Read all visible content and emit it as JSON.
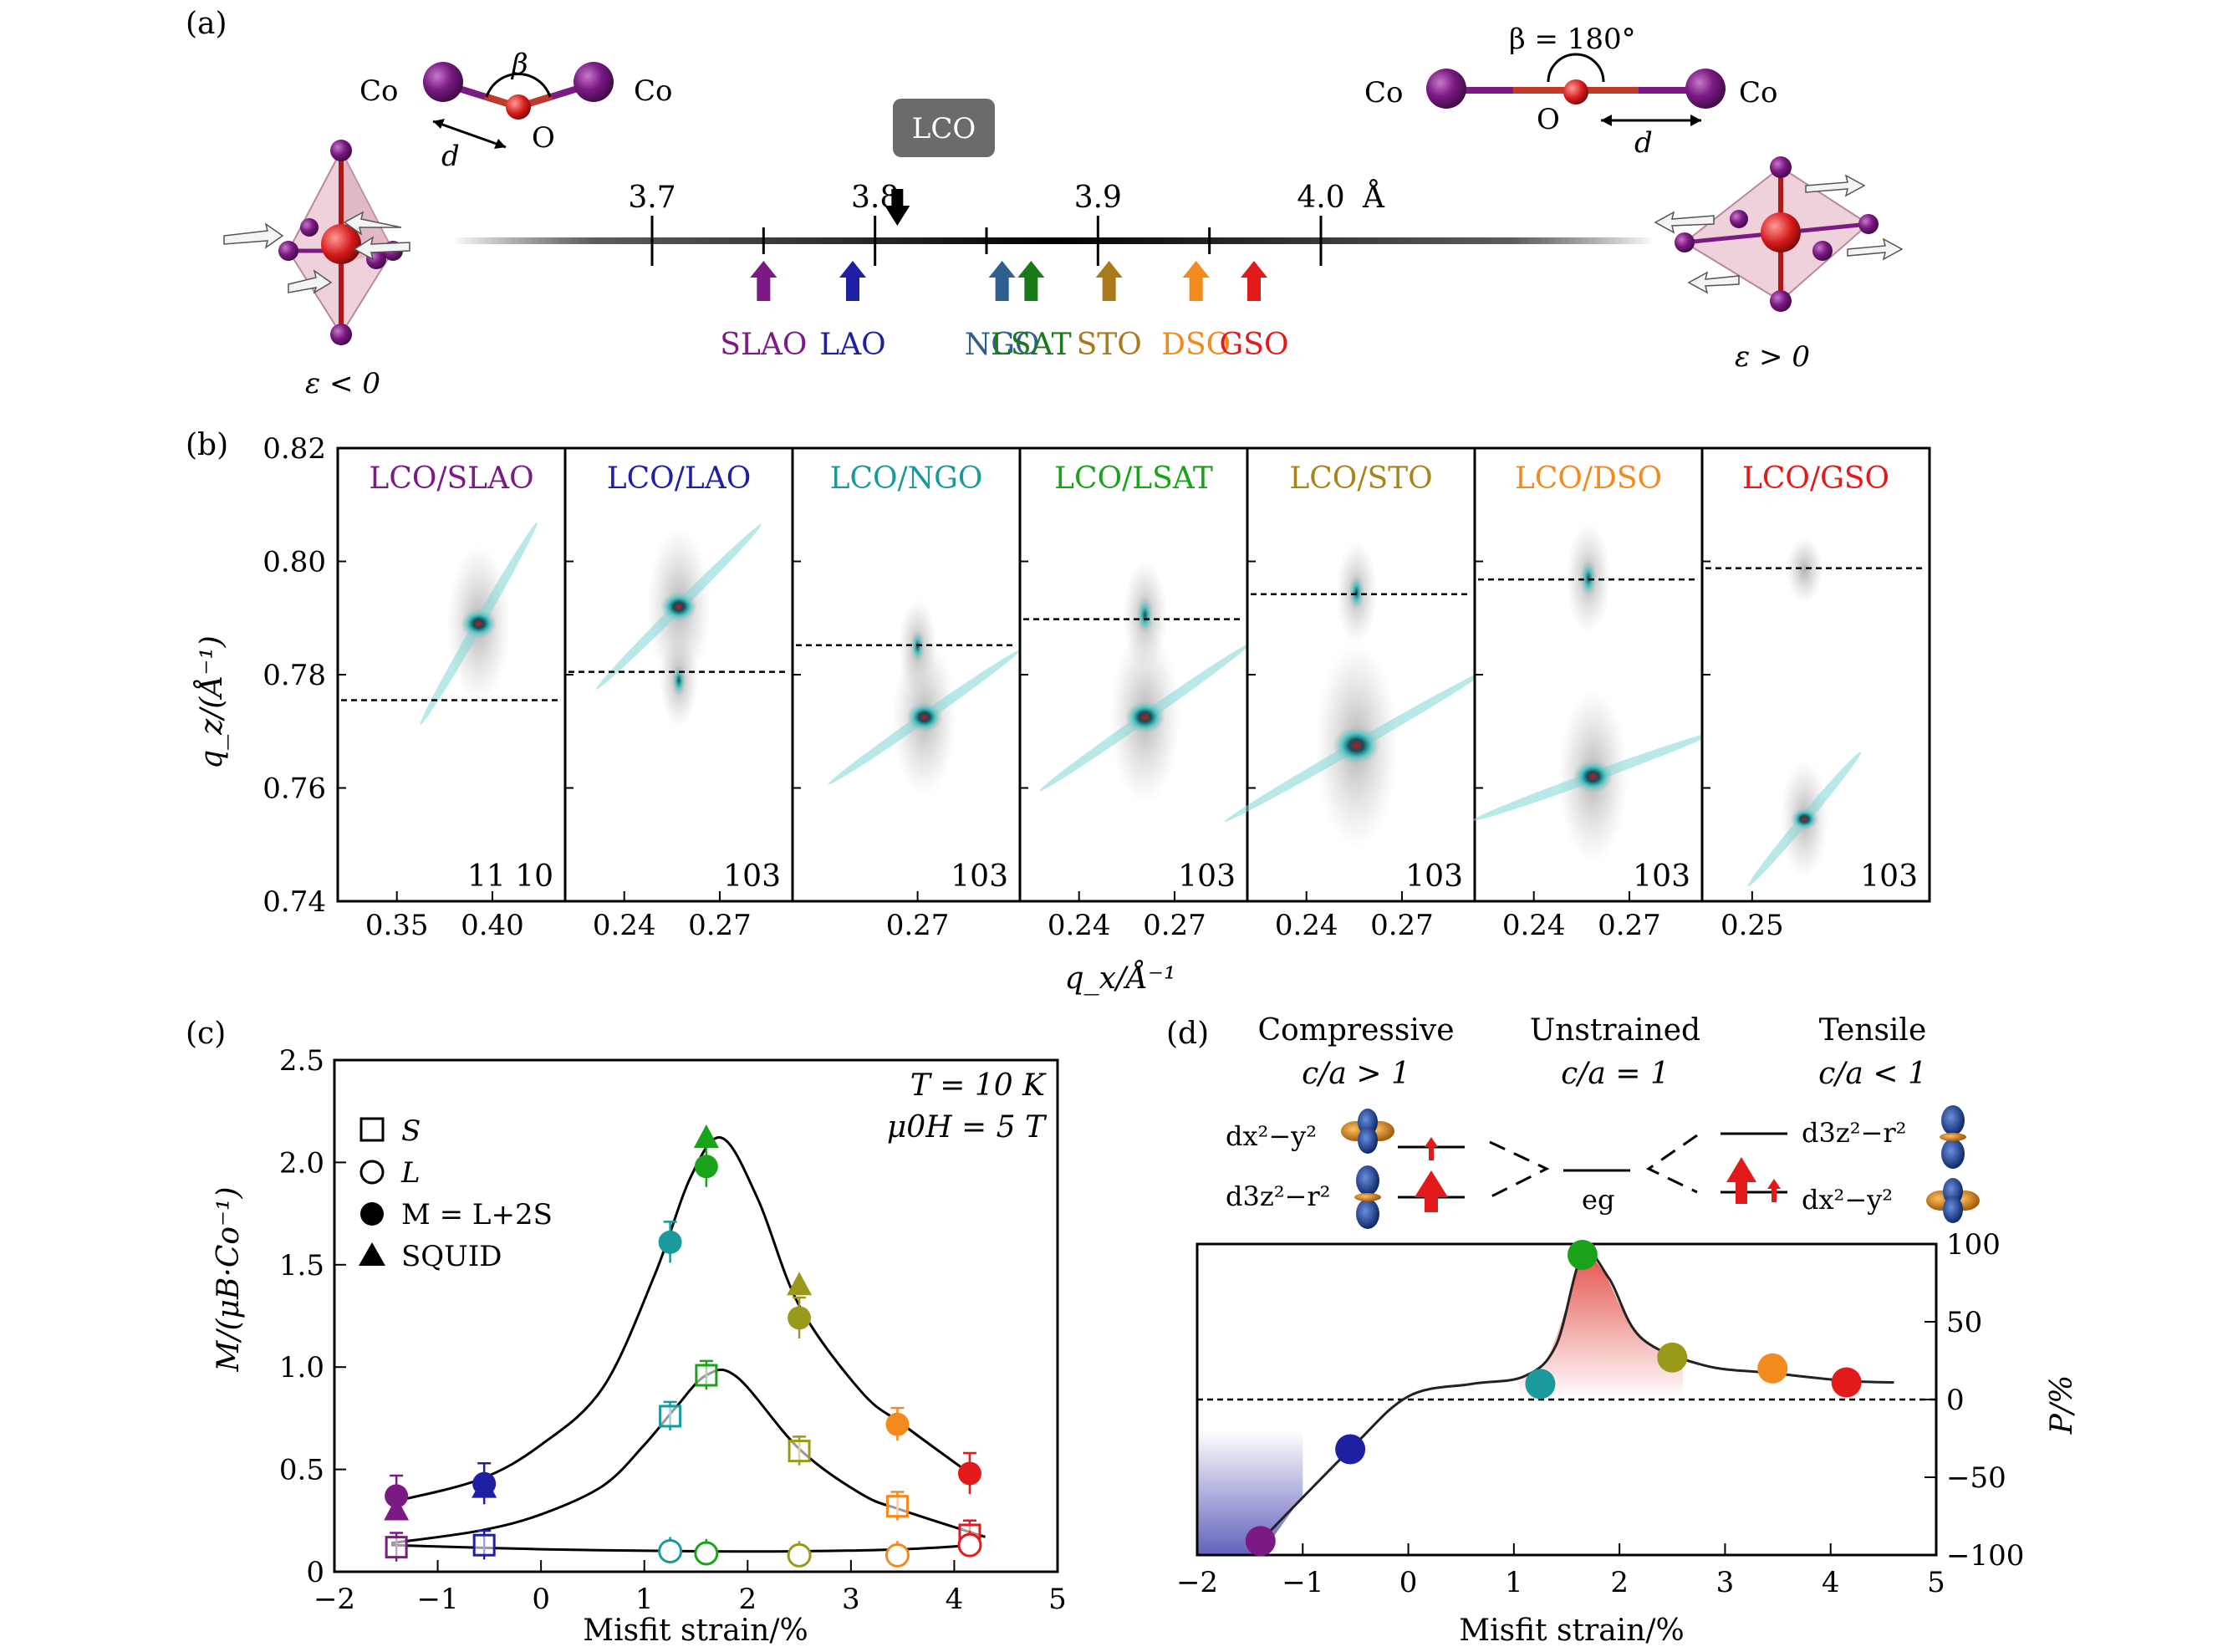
{
  "panel_labels": {
    "a": "(a)",
    "b": "(b)",
    "c": "(c)",
    "d": "(d)"
  },
  "panel_a": {
    "lco_label": "LCO",
    "lco_value": 3.81,
    "scale_range": [
      3.61,
      4.15
    ],
    "scale_ticks": [
      {
        "v": 3.7,
        "label": "3.7"
      },
      {
        "v": 3.8,
        "label": "3.8"
      },
      {
        "v": 3.9,
        "label": "3.9"
      },
      {
        "v": 4.0,
        "label": "4.0"
      }
    ],
    "minor_ticks": [
      3.75,
      3.85,
      3.95
    ],
    "unit": "Å",
    "substrates": [
      {
        "name": "SLAO",
        "value": 3.75,
        "color": "#7b1a84"
      },
      {
        "name": "LAO",
        "value": 3.79,
        "color": "#1f1fa3"
      },
      {
        "name": "NGO",
        "value": 3.857,
        "color": "#2f5f8f"
      },
      {
        "name": "LSAT",
        "value": 3.87,
        "color": "#1a7a1a"
      },
      {
        "name": "STO",
        "value": 3.905,
        "color": "#a87a1a"
      },
      {
        "name": "DSO",
        "value": 3.944,
        "color": "#f28a1e"
      },
      {
        "name": "GSO",
        "value": 3.97,
        "color": "#e31a1a"
      }
    ],
    "left_bond": {
      "co1": "Co",
      "co2": "Co",
      "o": "O",
      "beta": "β",
      "d": "d",
      "strain": "ε < 0"
    },
    "right_bond": {
      "co1": "Co",
      "co2": "Co",
      "o": "O",
      "beta": "β = 180°",
      "d": "d",
      "strain": "ε > 0"
    }
  },
  "panel_b": {
    "ylabel": "q_z/(Å⁻¹)",
    "xlabel": "q_x/Å⁻¹",
    "yticks": [
      "0.82",
      "0.80",
      "0.78",
      "0.76",
      "0.74"
    ],
    "ylim": [
      0.74,
      0.82
    ],
    "subplots": [
      {
        "label": "LCO/SLAO",
        "color": "#7b1a84",
        "reflection": "11 10",
        "xticks": [
          "0.35",
          "0.40"
        ],
        "dashed": 0.7755
      },
      {
        "label": "LCO/LAO",
        "color": "#1f1fa3",
        "reflection": "103",
        "xticks": [
          "0.24",
          "0.27"
        ],
        "dashed": 0.7805
      },
      {
        "label": "LCO/NGO",
        "color": "#1a9a9a",
        "reflection": "103",
        "xticks": [
          "0.27"
        ],
        "dashed": 0.7852
      },
      {
        "label": "LCO/LSAT",
        "color": "#1aa31a",
        "reflection": "103",
        "xticks": [
          "0.24",
          "0.27"
        ],
        "dashed": 0.7898
      },
      {
        "label": "LCO/STO",
        "color": "#a8841a",
        "reflection": "103",
        "xticks": [
          "0.24",
          "0.27"
        ],
        "dashed": 0.7942
      },
      {
        "label": "LCO/DSO",
        "color": "#f28a1e",
        "reflection": "103",
        "xticks": [
          "0.24",
          "0.27"
        ],
        "dashed": 0.7968
      },
      {
        "label": "LCO/GSO",
        "color": "#e31a1a",
        "reflection": "103",
        "xticks": [
          "0.25"
        ],
        "dashed": 0.7988
      }
    ]
  },
  "chart_data": [
    {
      "type": "scatter",
      "panel": "c",
      "xlabel": "Misfit strain/%",
      "ylabel": "M/(μB·Co⁻¹)",
      "xlim": [
        -2,
        5
      ],
      "ylim": [
        0,
        2.5
      ],
      "xticks": [
        "−2",
        "−1",
        "0",
        "1",
        "2",
        "3",
        "4",
        "5"
      ],
      "yticks": [
        "0",
        "0.5",
        "1.0",
        "1.5",
        "2.0",
        "2.5"
      ],
      "annotation": [
        "T = 10 K",
        "μ0H =  5 T"
      ],
      "legend": [
        "S",
        "L",
        "M = L+2S",
        "SQUID"
      ],
      "colors": [
        "#7b1a84",
        "#1f1fa3",
        "#1a9a9a",
        "#1aa31a",
        "#9a9a1a",
        "#f28a1e",
        "#e31a1a"
      ],
      "x": [
        -1.4,
        -0.55,
        1.25,
        1.6,
        2.5,
        3.45,
        4.15
      ],
      "series": [
        {
          "name": "S",
          "values": [
            0.12,
            0.13,
            0.76,
            0.96,
            0.59,
            0.32,
            0.18
          ]
        },
        {
          "name": "L",
          "values": [
            null,
            null,
            0.1,
            0.09,
            0.08,
            0.08,
            0.13
          ]
        },
        {
          "name": "M = L+2S",
          "values": [
            0.37,
            0.43,
            1.61,
            1.98,
            1.24,
            0.72,
            0.48
          ]
        },
        {
          "name": "SQUID",
          "values": [
            0.3,
            0.41,
            null,
            2.12,
            1.4,
            null,
            null
          ]
        }
      ],
      "error_bars": {
        "S": [
          0.07,
          0.07,
          0.07,
          0.07,
          0.07,
          0.07,
          0.07
        ],
        "M": [
          0.1,
          0.1,
          0.1,
          0.1,
          0.1,
          0.08,
          0.1
        ]
      }
    },
    {
      "type": "scatter",
      "panel": "d",
      "xlabel": "Misfit strain/%",
      "ylabel": "P/%",
      "xlim": [
        -2,
        5
      ],
      "ylim": [
        -100,
        100
      ],
      "xticks": [
        "−2",
        "−1",
        "0",
        "1",
        "2",
        "3",
        "4",
        "5"
      ],
      "yticks": [
        "100",
        "50",
        "0",
        "−50",
        "−100"
      ],
      "colors": [
        "#7b1a84",
        "#1f1fa3",
        "#1a9a9a",
        "#1aa31a",
        "#9a9a1a",
        "#f28a1e",
        "#e31a1a"
      ],
      "x": [
        -1.4,
        -0.55,
        1.25,
        1.65,
        2.5,
        3.45,
        4.15
      ],
      "values": [
        -91,
        -32,
        10,
        93,
        27,
        20,
        11
      ]
    }
  ],
  "panel_d_header": {
    "compressive": "Compressive",
    "compressive_ratio": "c/a > 1",
    "unstrained": "Unstrained",
    "unstrained_ratio": "c/a = 1",
    "tensile": "Tensile",
    "tensile_ratio": "c/a < 1",
    "eg": "eg",
    "orb_x2y2": "dx²−y²",
    "orb_3z2r2": "d3z²−r²"
  }
}
